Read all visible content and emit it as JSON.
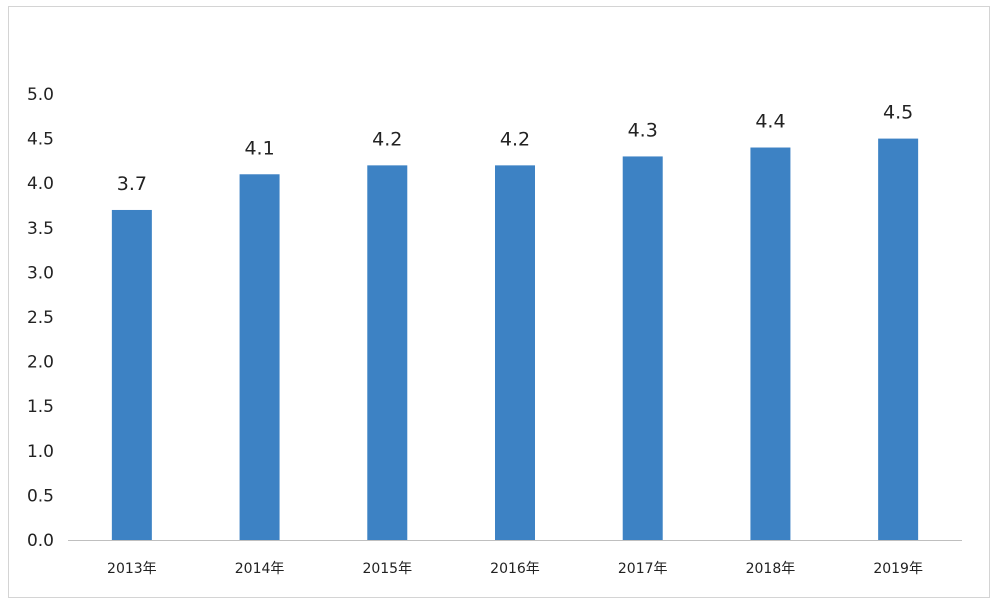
{
  "chart_data": {
    "type": "bar",
    "title": "",
    "xlabel": "",
    "ylabel": "",
    "categories": [
      "2013年",
      "2014年",
      "2015年",
      "2016年",
      "2017年",
      "2018年",
      "2019年"
    ],
    "values": [
      3.7,
      4.1,
      4.2,
      4.2,
      4.3,
      4.4,
      4.5
    ],
    "data_labels": [
      "3.7",
      "4.1",
      "4.2",
      "4.2",
      "4.3",
      "4.4",
      "4.5"
    ],
    "y_ticks": [
      "0.0",
      "0.5",
      "1.0",
      "1.5",
      "2.0",
      "2.5",
      "3.0",
      "3.5",
      "4.0",
      "4.5",
      "5.0"
    ],
    "ylim": [
      0,
      5
    ],
    "grid": false,
    "legend": "none",
    "bar_color": "#3d82c4",
    "axis_color": "#bfbfbf"
  }
}
